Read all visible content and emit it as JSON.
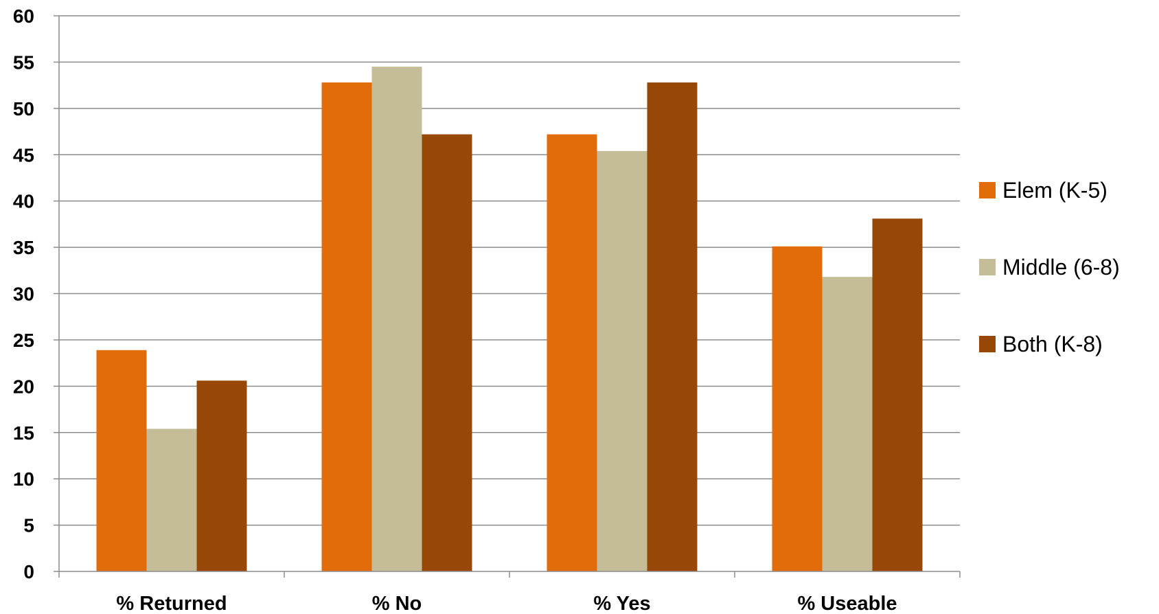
{
  "chart_data": {
    "type": "bar",
    "categories": [
      "% Returned",
      "% No",
      "% Yes",
      "% Useable"
    ],
    "series": [
      {
        "name": "Elem (K-5)",
        "color": "#E36C0A",
        "values": [
          23.9,
          52.8,
          47.2,
          35.1
        ]
      },
      {
        "name": "Middle (6-8)",
        "color": "#C4BD97",
        "values": [
          15.4,
          54.5,
          45.4,
          31.8
        ]
      },
      {
        "name": "Both (K-8)",
        "color": "#974806",
        "values": [
          20.6,
          47.2,
          52.8,
          38.1
        ]
      }
    ],
    "yticks": [
      "0",
      "5",
      "10",
      "15",
      "20",
      "25",
      "30",
      "35",
      "40",
      "45",
      "50",
      "55",
      "60"
    ],
    "ylim": [
      0,
      60
    ],
    "grid": true,
    "legend_position": "right",
    "title": "",
    "xlabel": "",
    "ylabel": ""
  }
}
